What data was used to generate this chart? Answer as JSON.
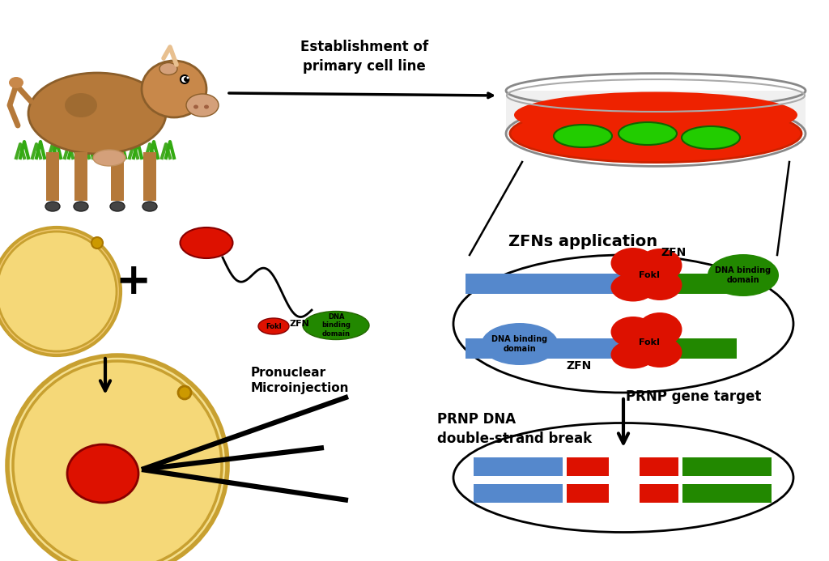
{
  "bg_color": "#ffffff",
  "red": "#dd1100",
  "green": "#228800",
  "light_blue": "#5588cc",
  "gold": "#c8a030",
  "gold_light": "#f0c870",
  "gold_fill": "#f5d878",
  "petri_red": "#ee2200",
  "petri_green": "#22cc00",
  "labels": {
    "establish": "Establishment of\nprimary cell line",
    "zfns_app": "ZFNs application",
    "prnp_gene": "PRNP gene target",
    "prnp_dna": "PRNP DNA\ndouble-strand break",
    "pronuclear": "Pronuclear\nMicroinjection",
    "zfn_top": "ZFN",
    "zfn_bottom": "ZFN",
    "foki_top": "FokI",
    "foki_bottom": "FokI",
    "dna_binding_top": "DNA binding\ndomain",
    "dna_binding_bottom": "DNA binding\ndomain"
  }
}
